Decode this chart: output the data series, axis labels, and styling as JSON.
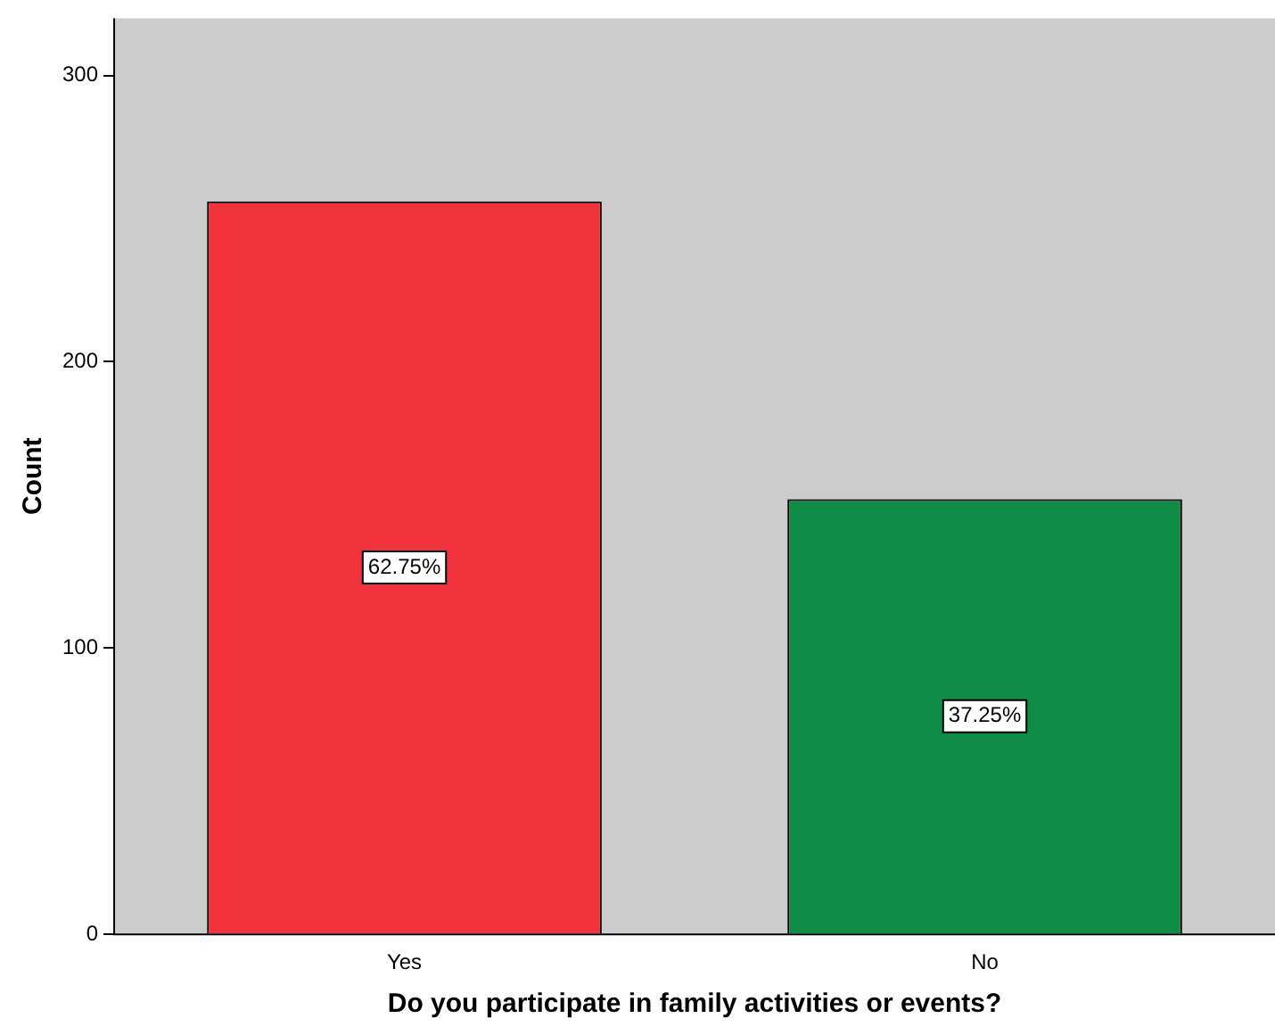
{
  "chart_data": {
    "type": "bar",
    "xlabel": "Do you participate in family activities or events?",
    "ylabel": "Count",
    "categories": [
      "Yes",
      "No"
    ],
    "values": [
      256,
      152
    ],
    "colors": [
      "#f0323c",
      "#0f8c46"
    ],
    "annotations": [
      "62.75%",
      "37.25%"
    ],
    "ylim": [
      0,
      320
    ],
    "yticks": [
      0,
      100,
      200,
      300
    ],
    "grid": false,
    "legend": false
  }
}
